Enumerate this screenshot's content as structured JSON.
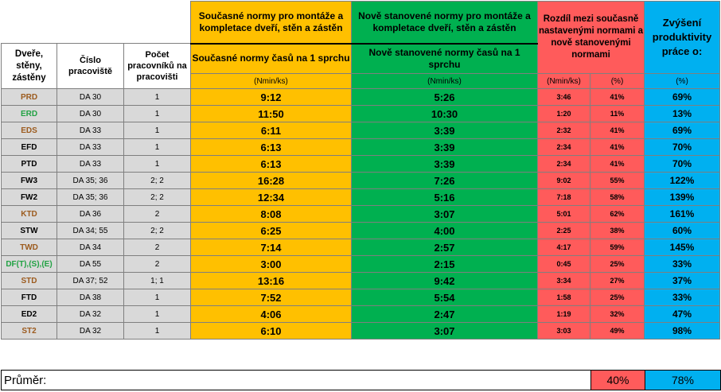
{
  "headers": {
    "door": "Dveře, stěny, zástěny",
    "workstation": "Číslo pracoviště",
    "workers": "Počet pracovníků na pracovišti",
    "current_title": "Současné normy pro montáže a kompletace dveří, stěn a zástěn",
    "new_title": "Nově stanovené normy pro montáže a kompletace dveří, stěn a zástěn",
    "diff_title": "Rozdíl mezi současně nastavenými normami a nově stanovenými normami",
    "prod_title": "Zvýšení produktivity práce o:",
    "current_sub": "Současné normy časů na 1 sprchu",
    "new_sub": "Nově stanovené normy časů na 1 sprchu",
    "unit_current": "(Nmin/ks)",
    "unit_new": "(Nmin/ks)",
    "unit_diff_time": "(Nmin/ks)",
    "unit_diff_pct": "(%)",
    "unit_prod": "(%)"
  },
  "rows": [
    {
      "name": "PRD",
      "name_color": "#9c5b1e",
      "ws": "DA 30",
      "cnt": "1",
      "cur": "9:12",
      "new": "5:26",
      "dt": "3:46",
      "dp": "41%",
      "pr": "69%"
    },
    {
      "name": "ERD",
      "name_color": "#21a243",
      "ws": "DA 30",
      "cnt": "1",
      "cur": "11:50",
      "new": "10:30",
      "dt": "1:20",
      "dp": "11%",
      "pr": "13%"
    },
    {
      "name": "EDS",
      "name_color": "#9c5b1e",
      "ws": "DA 33",
      "cnt": "1",
      "cur": "6:11",
      "new": "3:39",
      "dt": "2:32",
      "dp": "41%",
      "pr": "69%"
    },
    {
      "name": "EFD",
      "name_color": "#000000",
      "ws": "DA 33",
      "cnt": "1",
      "cur": "6:13",
      "new": "3:39",
      "dt": "2:34",
      "dp": "41%",
      "pr": "70%"
    },
    {
      "name": "PTD",
      "name_color": "#000000",
      "ws": "DA 33",
      "cnt": "1",
      "cur": "6:13",
      "new": "3:39",
      "dt": "2:34",
      "dp": "41%",
      "pr": "70%"
    },
    {
      "name": "FW3",
      "name_color": "#000000",
      "ws": "DA 35; 36",
      "cnt": "2; 2",
      "cur": "16:28",
      "new": "7:26",
      "dt": "9:02",
      "dp": "55%",
      "pr": "122%"
    },
    {
      "name": "FW2",
      "name_color": "#000000",
      "ws": "DA 35; 36",
      "cnt": "2; 2",
      "cur": "12:34",
      "new": "5:16",
      "dt": "7:18",
      "dp": "58%",
      "pr": "139%"
    },
    {
      "name": "KTD",
      "name_color": "#9c5b1e",
      "ws": "DA 36",
      "cnt": "2",
      "cur": "8:08",
      "new": "3:07",
      "dt": "5:01",
      "dp": "62%",
      "pr": "161%"
    },
    {
      "name": "STW",
      "name_color": "#000000",
      "ws": "DA 34; 55",
      "cnt": "2; 2",
      "cur": "6:25",
      "new": "4:00",
      "dt": "2:25",
      "dp": "38%",
      "pr": "60%"
    },
    {
      "name": "TWD",
      "name_color": "#9c5b1e",
      "ws": "DA 34",
      "cnt": "2",
      "cur": "7:14",
      "new": "2:57",
      "dt": "4:17",
      "dp": "59%",
      "pr": "145%"
    },
    {
      "name": "DF(T),(S),(E)",
      "name_color": "#21a243",
      "ws": "DA 55",
      "cnt": "2",
      "cur": "3:00",
      "new": "2:15",
      "dt": "0:45",
      "dp": "25%",
      "pr": "33%"
    },
    {
      "name": "STD",
      "name_color": "#9c5b1e",
      "ws": "DA 37; 52",
      "cnt": "1; 1",
      "cur": "13:16",
      "new": "9:42",
      "dt": "3:34",
      "dp": "27%",
      "pr": "37%"
    },
    {
      "name": "FTD",
      "name_color": "#000000",
      "ws": "DA 38",
      "cnt": "1",
      "cur": "7:52",
      "new": "5:54",
      "dt": "1:58",
      "dp": "25%",
      "pr": "33%"
    },
    {
      "name": "ED2",
      "name_color": "#000000",
      "ws": "DA 32",
      "cnt": "1",
      "cur": "4:06",
      "new": "2:47",
      "dt": "1:19",
      "dp": "32%",
      "pr": "47%"
    },
    {
      "name": "ST2",
      "name_color": "#9c5b1e",
      "ws": "DA 32",
      "cnt": "1",
      "cur": "6:10",
      "new": "3:07",
      "dt": "3:03",
      "dp": "49%",
      "pr": "98%"
    }
  ],
  "average": {
    "label": "Průměr:",
    "diff_pct": "40%",
    "prod_pct": "78%"
  }
}
